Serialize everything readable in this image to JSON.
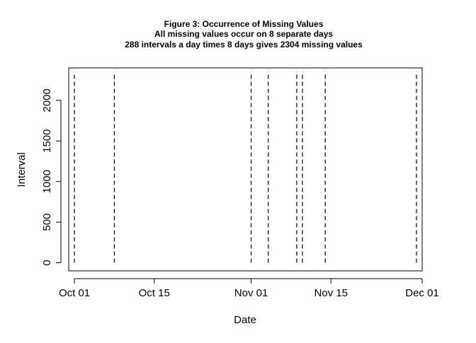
{
  "chart_data": {
    "type": "line",
    "title": "Figure 3: Occurrence of Missing Values",
    "subtitle_lines": [
      "All missing values occur on 8 separate days",
      "288 intervals a day times 8 days gives 2304 missing values"
    ],
    "xlabel": "Date",
    "ylabel": "Interval",
    "x_axis": {
      "type": "date",
      "range": [
        "2012-09-30",
        "2012-12-01"
      ],
      "ticks": [
        {
          "value": "2012-10-01",
          "label": "Oct 01"
        },
        {
          "value": "2012-10-15",
          "label": "Oct 15"
        },
        {
          "value": "2012-11-01",
          "label": "Nov 01"
        },
        {
          "value": "2012-11-15",
          "label": "Nov 15"
        },
        {
          "value": "2012-12-01",
          "label": "Dec 01"
        }
      ]
    },
    "y_axis": {
      "range": [
        -100,
        2400
      ],
      "ticks": [
        {
          "value": 0,
          "label": "0"
        },
        {
          "value": 500,
          "label": "500"
        },
        {
          "value": 1000,
          "label": "1000"
        },
        {
          "value": 1500,
          "label": "1500"
        },
        {
          "value": 2000,
          "label": "2000"
        }
      ]
    },
    "grid": false,
    "line_style": "dashed",
    "line_color": "#000000",
    "series": [
      {
        "y_range": [
          0,
          2355
        ],
        "x": [
          "2012-10-01",
          "2012-10-08",
          "2012-11-01",
          "2012-11-04",
          "2012-11-09",
          "2012-11-10",
          "2012-11-14",
          "2012-11-30"
        ]
      }
    ]
  }
}
